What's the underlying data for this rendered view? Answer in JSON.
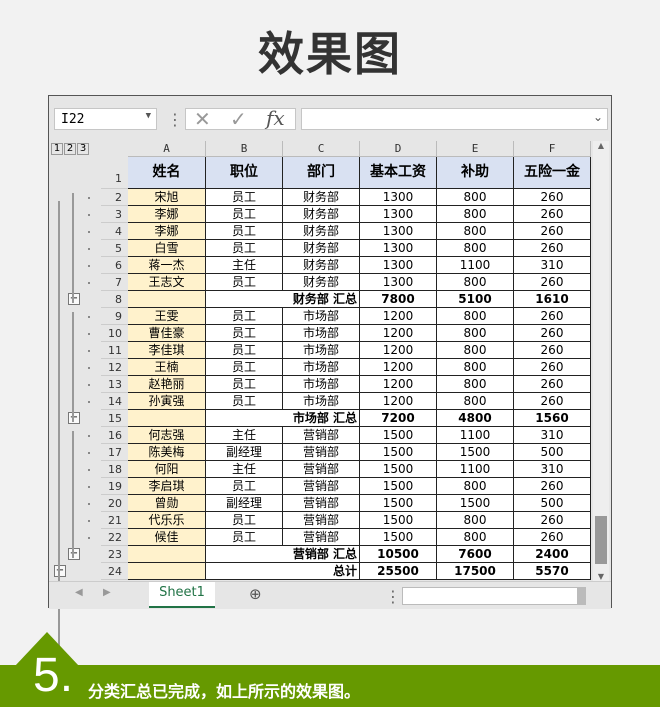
{
  "title": "效果图",
  "formula_bar": {
    "name_box": "I22",
    "cancel": "✕",
    "enter": "✓",
    "fx": "fx",
    "formula": ""
  },
  "outline_levels": [
    "1",
    "2",
    "3"
  ],
  "columns": [
    "A",
    "B",
    "C",
    "D",
    "E",
    "F"
  ],
  "header": [
    "姓名",
    "职位",
    "部门",
    "基本工资",
    "补助",
    "五险一金"
  ],
  "rows": [
    {
      "n": "2",
      "v": [
        "宋旭",
        "员工",
        "财务部",
        "1300",
        "800",
        "260"
      ]
    },
    {
      "n": "3",
      "v": [
        "李娜",
        "员工",
        "财务部",
        "1300",
        "800",
        "260"
      ]
    },
    {
      "n": "4",
      "v": [
        "李娜",
        "员工",
        "财务部",
        "1300",
        "800",
        "260"
      ]
    },
    {
      "n": "5",
      "v": [
        "白雪",
        "员工",
        "财务部",
        "1300",
        "800",
        "260"
      ]
    },
    {
      "n": "6",
      "v": [
        "蒋一杰",
        "主任",
        "财务部",
        "1300",
        "1100",
        "310"
      ]
    },
    {
      "n": "7",
      "v": [
        "王志文",
        "员工",
        "财务部",
        "1300",
        "800",
        "260"
      ]
    },
    {
      "n": "8",
      "sub": true,
      "v": [
        "",
        "",
        "财务部 汇总",
        "7800",
        "5100",
        "1610"
      ]
    },
    {
      "n": "9",
      "v": [
        "王雯",
        "员工",
        "市场部",
        "1200",
        "800",
        "260"
      ]
    },
    {
      "n": "10",
      "v": [
        "曹佳豪",
        "员工",
        "市场部",
        "1200",
        "800",
        "260"
      ]
    },
    {
      "n": "11",
      "v": [
        "李佳琪",
        "员工",
        "市场部",
        "1200",
        "800",
        "260"
      ]
    },
    {
      "n": "12",
      "v": [
        "王楠",
        "员工",
        "市场部",
        "1200",
        "800",
        "260"
      ]
    },
    {
      "n": "13",
      "v": [
        "赵艳丽",
        "员工",
        "市场部",
        "1200",
        "800",
        "260"
      ]
    },
    {
      "n": "14",
      "v": [
        "孙寅强",
        "员工",
        "市场部",
        "1200",
        "800",
        "260"
      ]
    },
    {
      "n": "15",
      "sub": true,
      "v": [
        "",
        "",
        "市场部 汇总",
        "7200",
        "4800",
        "1560"
      ]
    },
    {
      "n": "16",
      "v": [
        "何志强",
        "主任",
        "营销部",
        "1500",
        "1100",
        "310"
      ]
    },
    {
      "n": "17",
      "v": [
        "陈美梅",
        "副经理",
        "营销部",
        "1500",
        "1500",
        "500"
      ]
    },
    {
      "n": "18",
      "v": [
        "何阳",
        "主任",
        "营销部",
        "1500",
        "1100",
        "310"
      ]
    },
    {
      "n": "19",
      "v": [
        "李启琪",
        "员工",
        "营销部",
        "1500",
        "800",
        "260"
      ]
    },
    {
      "n": "20",
      "v": [
        "曾勋",
        "副经理",
        "营销部",
        "1500",
        "1500",
        "500"
      ]
    },
    {
      "n": "21",
      "v": [
        "代乐乐",
        "员工",
        "营销部",
        "1500",
        "800",
        "260"
      ]
    },
    {
      "n": "22",
      "v": [
        "候佳",
        "员工",
        "营销部",
        "1500",
        "800",
        "260"
      ]
    },
    {
      "n": "23",
      "sub": true,
      "v": [
        "",
        "",
        "营销部 汇总",
        "10500",
        "7600",
        "2400"
      ]
    },
    {
      "n": "24",
      "sub": true,
      "v": [
        "",
        "",
        "总计",
        "25500",
        "17500",
        "5570"
      ]
    }
  ],
  "sheet_tab": "Sheet1",
  "step": {
    "number": "5.",
    "text": "分类汇总已完成，如上所示的效果图。"
  },
  "colors": {
    "accent": "#669900",
    "header_fill": "#d9e1f2",
    "name_fill": "#fff2cc"
  }
}
